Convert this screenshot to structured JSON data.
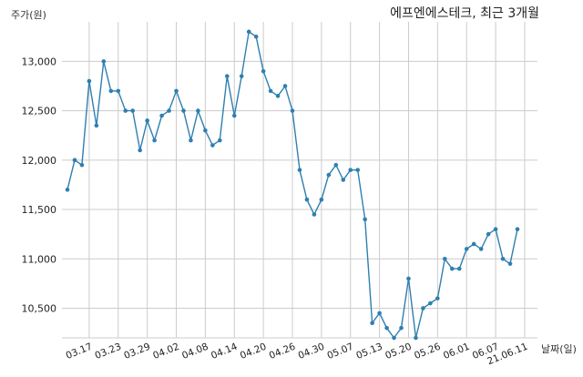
{
  "chart_data": {
    "type": "line",
    "title": "에프엔에스테크, 최근 3개월",
    "ylabel": "주가(원)",
    "xlabel": "날짜(일)",
    "ylim": [
      10200,
      13400
    ],
    "yticks": [
      10500,
      11000,
      11500,
      12000,
      12500,
      13000
    ],
    "ytick_labels": [
      "10,500",
      "11,000",
      "11,500",
      "12,000",
      "12,500",
      "13,000"
    ],
    "xtick_labels": [
      "03.17",
      "03.23",
      "03.29",
      "04.02",
      "04.08",
      "04.14",
      "04.20",
      "04.26",
      "04.30",
      "05.07",
      "05.13",
      "05.20",
      "05.26",
      "06.01",
      "06.07",
      "21.06.11"
    ],
    "xtick_index": [
      3,
      7,
      11,
      15,
      19,
      23,
      27,
      31,
      35,
      39,
      43,
      47,
      51,
      55,
      59,
      63
    ],
    "color": "#2f7fb0",
    "grid": true,
    "series": [
      {
        "values": [
          11700,
          12000,
          11950,
          12800,
          12350,
          13000,
          12700,
          12700,
          12500,
          12500,
          12100,
          12400,
          12200,
          12450,
          12500,
          12700,
          12500,
          12200,
          12500,
          12300,
          12150,
          12200,
          12850,
          12450,
          12850,
          13300,
          13250,
          12900,
          12700,
          12650,
          12750,
          12500,
          11900,
          11600,
          11450,
          11600,
          11850,
          11950,
          11800,
          11900,
          11900,
          11400,
          10350,
          10450,
          10300,
          10200,
          10300,
          10800,
          10200,
          10500,
          10550,
          10600,
          11000,
          10900,
          10900,
          11100,
          11150,
          11100,
          11250,
          11300,
          11000,
          10950,
          11300
        ]
      }
    ]
  }
}
